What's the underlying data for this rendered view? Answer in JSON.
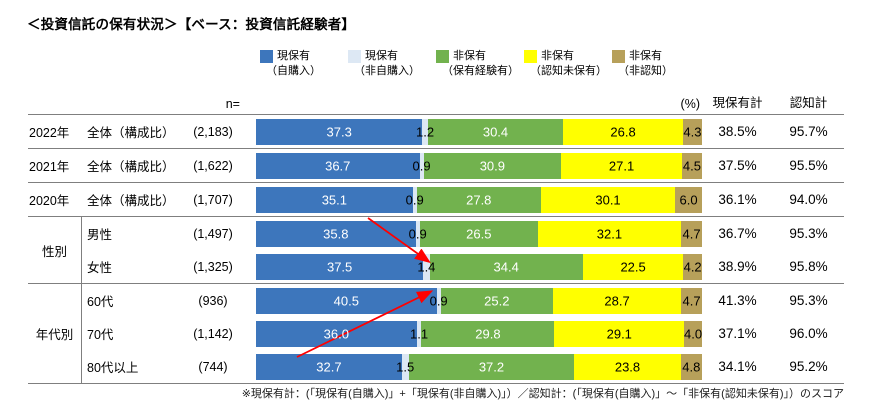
{
  "title": "＜投資信託の保有状況＞【ベース：投資信託経験者】",
  "colors": {
    "border": "#7f7f7f",
    "arrow": "#ff0000"
  },
  "legend": [
    {
      "label": "現保有",
      "sublabel": "（自購入）",
      "color": "#3d76bc",
      "value_text": "#ffffff"
    },
    {
      "label": "現保有",
      "sublabel": "（非自購入）",
      "color": "#dde8f4",
      "value_text": "#000000"
    },
    {
      "label": "非保有",
      "sublabel": "（保有経験有）",
      "color": "#72b24e",
      "value_text": "#ffffff"
    },
    {
      "label": "非保有",
      "sublabel": "（認知未保有）",
      "color": "#ffff00",
      "value_text": "#000000"
    },
    {
      "label": "非保有",
      "sublabel": "（非認知）",
      "color": "#b7a05a",
      "value_text": "#000000"
    }
  ],
  "table": {
    "header": {
      "n": "n=",
      "pct": "(%)",
      "total1": "現保有計",
      "total2": "認知計"
    },
    "groups": [
      {
        "label": "2022年",
        "divider": false,
        "rows": [
          {
            "label": "全体（構成比）",
            "n": "(2,183)",
            "values": [
              37.3,
              1.2,
              30.4,
              26.8,
              4.3
            ],
            "total1": "38.5%",
            "total2": "95.7%"
          }
        ]
      },
      {
        "label": "2021年",
        "divider": false,
        "rows": [
          {
            "label": "全体（構成比）",
            "n": "(1,622)",
            "values": [
              36.7,
              0.9,
              30.9,
              27.1,
              4.5
            ],
            "total1": "37.5%",
            "total2": "95.5%"
          }
        ]
      },
      {
        "label": "2020年",
        "divider": false,
        "rows": [
          {
            "label": "全体（構成比）",
            "n": "(1,707)",
            "values": [
              35.1,
              0.9,
              27.8,
              30.1,
              6.0
            ],
            "total1": "36.1%",
            "total2": "94.0%"
          }
        ]
      },
      {
        "label": "性別",
        "divider": true,
        "rows": [
          {
            "label": "男性",
            "n": "(1,497)",
            "values": [
              35.8,
              0.9,
              26.5,
              32.1,
              4.7
            ],
            "total1": "36.7%",
            "total2": "95.3%"
          },
          {
            "label": "女性",
            "n": "(1,325)",
            "values": [
              37.5,
              1.4,
              34.4,
              22.5,
              4.2
            ],
            "total1": "38.9%",
            "total2": "95.8%"
          }
        ]
      },
      {
        "label": "年代別",
        "divider": true,
        "rows": [
          {
            "label": "60代",
            "n": "(936)",
            "values": [
              40.5,
              0.9,
              25.2,
              28.7,
              4.7
            ],
            "total1": "41.3%",
            "total2": "95.3%"
          },
          {
            "label": "70代",
            "n": "(1,142)",
            "values": [
              36.0,
              1.1,
              29.8,
              29.1,
              4.0
            ],
            "total1": "37.1%",
            "total2": "96.0%"
          },
          {
            "label": "80代以上",
            "n": "(744)",
            "values": [
              32.7,
              1.5,
              37.2,
              23.8,
              4.8
            ],
            "total1": "34.1%",
            "total2": "95.2%"
          }
        ]
      }
    ]
  },
  "annotations": [
    {
      "type": "arrow",
      "from": [
        368,
        218
      ],
      "to": [
        428,
        261
      ]
    },
    {
      "type": "arrow",
      "from": [
        297,
        357
      ],
      "to": [
        430,
        292
      ]
    }
  ],
  "footnote": "※現保有計：(「現保有(自購入)」+「現保有(非自購入)」）／認知計：(「現保有(自購入)」～「非保有(認知未保有)」）のスコア",
  "chart_data": {
    "type": "bar",
    "variant": "horizontal-stacked",
    "unit": "%",
    "xlim": [
      0,
      100
    ],
    "legend_position": "top",
    "categories": [
      "2022年 全体（構成比）",
      "2021年 全体（構成比）",
      "2020年 全体（構成比）",
      "性別 男性",
      "性別 女性",
      "年代別 60代",
      "年代別 70代",
      "年代別 80代以上"
    ],
    "sample_sizes": [
      "2,183",
      "1,622",
      "1,707",
      "1,497",
      "1,325",
      "936",
      "1,142",
      "744"
    ],
    "series": [
      {
        "name": "現保有（自購入）",
        "color": "#3d76bc",
        "values": [
          37.3,
          36.7,
          35.1,
          35.8,
          37.5,
          40.5,
          36.0,
          32.7
        ]
      },
      {
        "name": "現保有（非自購入）",
        "color": "#dde8f4",
        "values": [
          1.2,
          0.9,
          0.9,
          0.9,
          1.4,
          0.9,
          1.1,
          1.5
        ]
      },
      {
        "name": "非保有（保有経験有）",
        "color": "#72b24e",
        "values": [
          30.4,
          30.9,
          27.8,
          26.5,
          34.4,
          25.2,
          29.8,
          37.2
        ]
      },
      {
        "name": "非保有（認知未保有）",
        "color": "#ffff00",
        "values": [
          26.8,
          27.1,
          30.1,
          32.1,
          22.5,
          28.7,
          29.1,
          23.8
        ]
      },
      {
        "name": "非保有（非認知）",
        "color": "#b7a05a",
        "values": [
          4.3,
          4.5,
          6.0,
          4.7,
          4.2,
          4.7,
          4.0,
          4.8
        ]
      }
    ],
    "totals": {
      "現保有計": [
        "38.5%",
        "37.5%",
        "36.1%",
        "36.7%",
        "38.9%",
        "41.3%",
        "37.1%",
        "34.1%"
      ],
      "認知計": [
        "95.7%",
        "95.5%",
        "94.0%",
        "95.3%",
        "95.8%",
        "95.3%",
        "96.0%",
        "95.2%"
      ]
    }
  }
}
